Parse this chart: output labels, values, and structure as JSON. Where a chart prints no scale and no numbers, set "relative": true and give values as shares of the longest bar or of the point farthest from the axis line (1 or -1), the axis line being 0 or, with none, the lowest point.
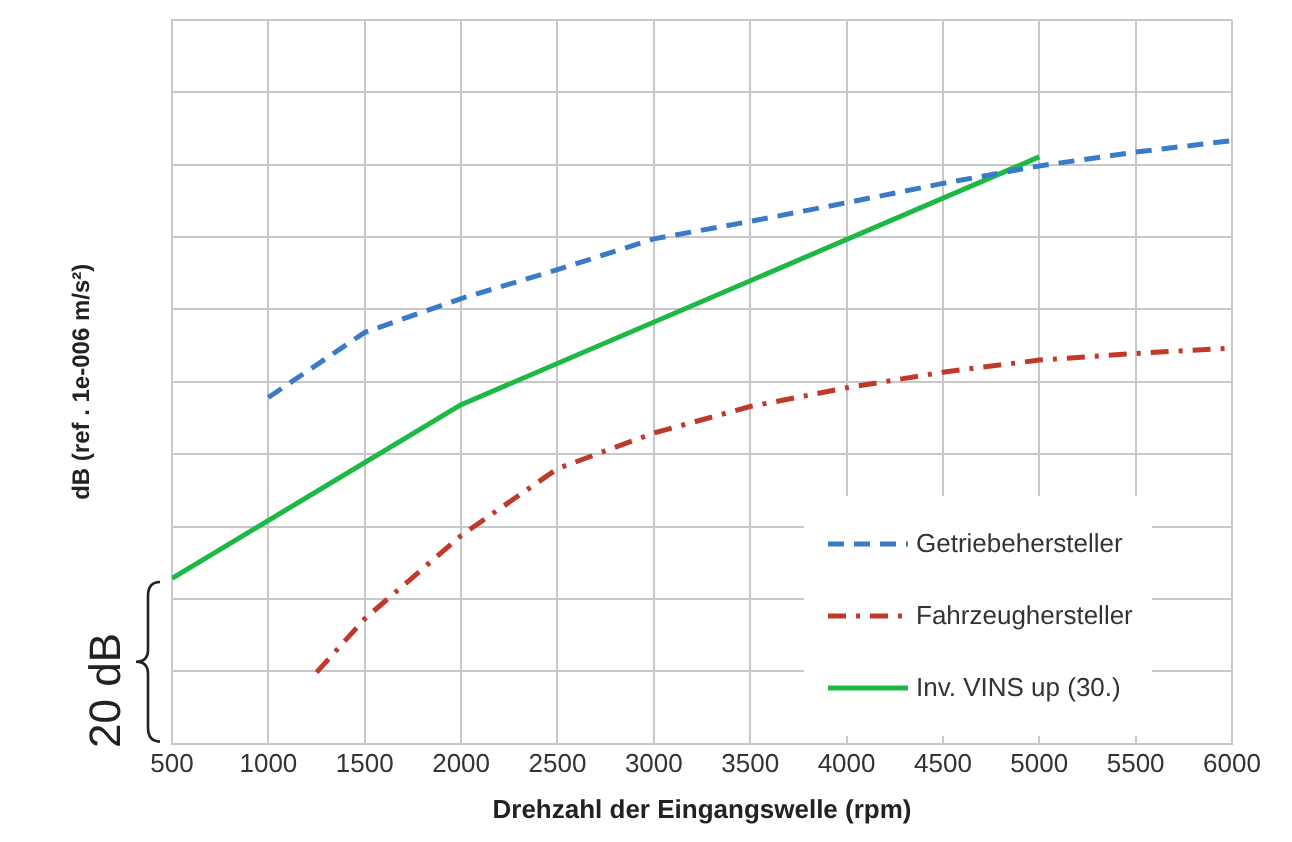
{
  "chart_data": {
    "type": "line",
    "relative": true,
    "xlabel": "Drehzahl der Eingangswelle (rpm)",
    "ylabel": "dB (ref . 1e-006 m/s²)",
    "annotations": [
      "20 dB"
    ],
    "xlim": [
      500,
      6000
    ],
    "xticks": [
      500,
      1000,
      1500,
      2000,
      2500,
      3000,
      3500,
      4000,
      4500,
      5000,
      5500,
      6000
    ],
    "grid": true,
    "legend": "bottom right",
    "marker": "none",
    "series": [
      {
        "name": "Getriebehersteller",
        "color": "#3a7bc8",
        "line_style": "dashed",
        "x": [
          1000,
          1500,
          2000,
          2500,
          3000,
          3500,
          4000,
          4500,
          5000,
          5500,
          6000
        ],
        "values": [
          0.574,
          0.682,
          0.738,
          0.786,
          0.837,
          0.866,
          0.897,
          0.929,
          0.958,
          0.981,
          1
        ]
      },
      {
        "name": "Fahrzeughersteller",
        "color": "#c0392b",
        "line_style": "dashdot",
        "x": [
          1250,
          1500,
          2000,
          2500,
          3000,
          3500,
          4000,
          4500,
          5000,
          5500,
          6000
        ],
        "values": [
          0.118,
          0.207,
          0.345,
          0.456,
          0.515,
          0.559,
          0.59,
          0.616,
          0.636,
          0.647,
          0.656
        ]
      },
      {
        "name": "Inv. VINS up (30.)",
        "color": "#1db845",
        "line_style": "solid",
        "x": [
          500,
          2000,
          5000
        ],
        "values": [
          0.274,
          0.562,
          0.973
        ]
      }
    ]
  }
}
